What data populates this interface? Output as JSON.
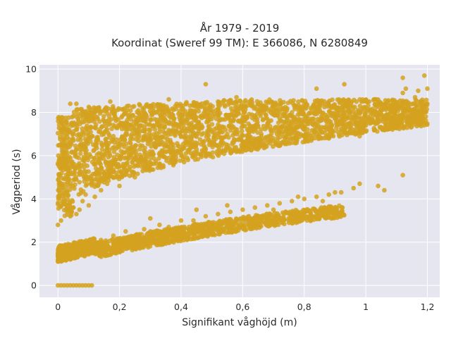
{
  "chart_data": {
    "type": "scatter",
    "title": [
      "År 1979 - 2019",
      "Koordinat (Sweref 99 TM): E 366086, N 6280849"
    ],
    "xlabel": "Signifikant våghöjd (m)",
    "ylabel": "Vågperiod (s)",
    "xlim": [
      -0.06,
      1.24
    ],
    "ylim": [
      -0.55,
      10.2
    ],
    "x_ticks": [
      0,
      0.2,
      0.4,
      0.6,
      0.8,
      1,
      1.2
    ],
    "x_tick_labels": [
      "0",
      "0,2",
      "0,4",
      "0,6",
      "0,8",
      "1",
      "1,2"
    ],
    "y_ticks": [
      0,
      2,
      4,
      6,
      8,
      10
    ],
    "y_tick_labels": [
      "0",
      "2",
      "4",
      "6",
      "8",
      "10"
    ],
    "grid": true,
    "colors": {
      "marker": "#d4a21f",
      "plot_bg": "#e6e6f0",
      "grid": "#ffffff"
    },
    "series": [
      {
        "points": [
          [
            0.0,
            0.0
          ],
          [
            0.01,
            0.0
          ],
          [
            0.02,
            0.0
          ],
          [
            0.03,
            0.0
          ],
          [
            0.04,
            0.0
          ],
          [
            0.05,
            0.0
          ],
          [
            0.06,
            0.0
          ],
          [
            0.07,
            0.0
          ],
          [
            0.08,
            0.0
          ],
          [
            0.09,
            0.0
          ],
          [
            0.1,
            0.0
          ],
          [
            0.11,
            0.0
          ],
          [
            0.01,
            1.2
          ],
          [
            0.01,
            1.5
          ],
          [
            0.02,
            1.3
          ],
          [
            0.03,
            1.6
          ],
          [
            0.04,
            1.2
          ],
          [
            0.05,
            1.7
          ],
          [
            0.06,
            1.3
          ],
          [
            0.07,
            1.8
          ],
          [
            0.08,
            1.4
          ],
          [
            0.1,
            1.9
          ],
          [
            0.12,
            1.6
          ],
          [
            0.14,
            2.1
          ],
          [
            0.16,
            1.9
          ],
          [
            0.18,
            2.3
          ],
          [
            0.2,
            2.1
          ],
          [
            0.22,
            2.5
          ],
          [
            0.25,
            2.3
          ],
          [
            0.28,
            2.6
          ],
          [
            0.3,
            2.5
          ],
          [
            0.33,
            2.8
          ],
          [
            0.36,
            2.7
          ],
          [
            0.4,
            3.0
          ],
          [
            0.44,
            3.0
          ],
          [
            0.48,
            3.2
          ],
          [
            0.52,
            3.3
          ],
          [
            0.56,
            3.4
          ],
          [
            0.6,
            3.5
          ],
          [
            0.64,
            3.6
          ],
          [
            0.68,
            3.7
          ],
          [
            0.72,
            3.8
          ],
          [
            0.76,
            3.9
          ],
          [
            0.8,
            4.0
          ],
          [
            0.84,
            4.1
          ],
          [
            0.88,
            4.2
          ],
          [
            0.92,
            4.3
          ],
          [
            0.3,
            3.1
          ],
          [
            0.45,
            3.5
          ],
          [
            0.38,
            2.6
          ],
          [
            0.5,
            2.9
          ],
          [
            0.55,
            3.7
          ],
          [
            0.62,
            3.2
          ],
          [
            0.7,
            3.5
          ],
          [
            0.78,
            4.1
          ],
          [
            0.86,
            3.9
          ],
          [
            0.9,
            4.3
          ],
          [
            0.96,
            4.5
          ],
          [
            0.98,
            4.7
          ],
          [
            1.04,
            4.6
          ],
          [
            1.06,
            4.4
          ],
          [
            1.12,
            5.1
          ],
          [
            0.0,
            2.8
          ],
          [
            0.01,
            3.0
          ],
          [
            0.0,
            5.6
          ],
          [
            0.01,
            5.4
          ],
          [
            0.02,
            4.0
          ],
          [
            0.02,
            6.2
          ],
          [
            0.03,
            3.4
          ],
          [
            0.03,
            5.0
          ],
          [
            0.03,
            7.0
          ],
          [
            0.04,
            3.2
          ],
          [
            0.04,
            4.6
          ],
          [
            0.04,
            6.6
          ],
          [
            0.04,
            8.4
          ],
          [
            0.05,
            3.6
          ],
          [
            0.05,
            5.5
          ],
          [
            0.05,
            7.4
          ],
          [
            0.06,
            3.3
          ],
          [
            0.06,
            4.9
          ],
          [
            0.06,
            6.3
          ],
          [
            0.06,
            8.4
          ],
          [
            0.07,
            3.5
          ],
          [
            0.07,
            5.2
          ],
          [
            0.07,
            7.8
          ],
          [
            0.08,
            3.9
          ],
          [
            0.08,
            5.8
          ],
          [
            0.08,
            7.1
          ],
          [
            0.09,
            4.2
          ],
          [
            0.09,
            6.4
          ],
          [
            0.09,
            7.6
          ],
          [
            0.1,
            3.7
          ],
          [
            0.1,
            5.0
          ],
          [
            0.1,
            6.8
          ],
          [
            0.1,
            8.0
          ],
          [
            0.12,
            4.1
          ],
          [
            0.12,
            5.6
          ],
          [
            0.12,
            7.3
          ],
          [
            0.13,
            8.2
          ],
          [
            0.14,
            4.4
          ],
          [
            0.14,
            6.1
          ],
          [
            0.15,
            7.6
          ],
          [
            0.16,
            4.7
          ],
          [
            0.16,
            6.5
          ],
          [
            0.17,
            8.5
          ],
          [
            0.18,
            5.0
          ],
          [
            0.18,
            6.9
          ],
          [
            0.2,
            4.6
          ],
          [
            0.2,
            5.9
          ],
          [
            0.2,
            7.4
          ],
          [
            0.22,
            5.3
          ],
          [
            0.22,
            7.0
          ],
          [
            0.23,
            8.3
          ],
          [
            0.25,
            5.0
          ],
          [
            0.25,
            6.3
          ],
          [
            0.26,
            7.7
          ],
          [
            0.28,
            5.4
          ],
          [
            0.28,
            6.8
          ],
          [
            0.3,
            5.7
          ],
          [
            0.3,
            7.2
          ],
          [
            0.3,
            8.3
          ],
          [
            0.33,
            5.5
          ],
          [
            0.33,
            6.6
          ],
          [
            0.35,
            7.6
          ],
          [
            0.36,
            8.6
          ],
          [
            0.38,
            5.8
          ],
          [
            0.38,
            7.0
          ],
          [
            0.4,
            6.1
          ],
          [
            0.4,
            7.5
          ],
          [
            0.42,
            5.9
          ],
          [
            0.43,
            6.9
          ],
          [
            0.44,
            8.0
          ],
          [
            0.45,
            6.3
          ],
          [
            0.46,
            7.3
          ],
          [
            0.48,
            6.0
          ],
          [
            0.48,
            7.8
          ],
          [
            0.5,
            6.5
          ],
          [
            0.5,
            7.1
          ],
          [
            0.52,
            8.5
          ],
          [
            0.53,
            6.2
          ],
          [
            0.55,
            7.0
          ],
          [
            0.55,
            7.8
          ],
          [
            0.57,
            6.6
          ],
          [
            0.58,
            8.2
          ],
          [
            0.6,
            6.3
          ],
          [
            0.6,
            7.4
          ],
          [
            0.62,
            6.8
          ],
          [
            0.63,
            7.9
          ],
          [
            0.65,
            6.5
          ],
          [
            0.66,
            7.2
          ],
          [
            0.68,
            7.7
          ],
          [
            0.7,
            6.7
          ],
          [
            0.7,
            8.0
          ],
          [
            0.72,
            7.1
          ],
          [
            0.73,
            6.6
          ],
          [
            0.75,
            7.5
          ],
          [
            0.77,
            6.8
          ],
          [
            0.78,
            7.9
          ],
          [
            0.8,
            7.2
          ],
          [
            0.8,
            6.9
          ],
          [
            0.82,
            7.6
          ],
          [
            0.84,
            7.0
          ],
          [
            0.85,
            8.4
          ],
          [
            0.87,
            7.3
          ],
          [
            0.88,
            6.8
          ],
          [
            0.9,
            7.7
          ],
          [
            0.9,
            8.2
          ],
          [
            0.92,
            7.1
          ],
          [
            0.93,
            9.3
          ],
          [
            0.95,
            7.5
          ],
          [
            0.97,
            7.8
          ],
          [
            0.98,
            6.9
          ],
          [
            1.0,
            7.4
          ],
          [
            1.0,
            8.1
          ],
          [
            1.02,
            7.6
          ],
          [
            1.03,
            8.6
          ],
          [
            1.05,
            7.9
          ],
          [
            1.07,
            7.3
          ],
          [
            1.09,
            8.3
          ],
          [
            1.1,
            7.7
          ],
          [
            1.12,
            8.9
          ],
          [
            1.13,
            9.1
          ],
          [
            1.14,
            8.2
          ],
          [
            1.15,
            7.9
          ],
          [
            1.16,
            8.7
          ],
          [
            1.17,
            9.0
          ],
          [
            1.18,
            8.4
          ],
          [
            1.19,
            9.7
          ],
          [
            1.2,
            9.1
          ],
          [
            1.2,
            8.4
          ],
          [
            1.12,
            9.6
          ],
          [
            0.84,
            9.1
          ],
          [
            0.58,
            8.7
          ],
          [
            0.48,
            9.3
          ],
          [
            1.1,
            7.4
          ],
          [
            1.17,
            7.6
          ],
          [
            0.96,
            7.2
          ]
        ]
      }
    ]
  }
}
